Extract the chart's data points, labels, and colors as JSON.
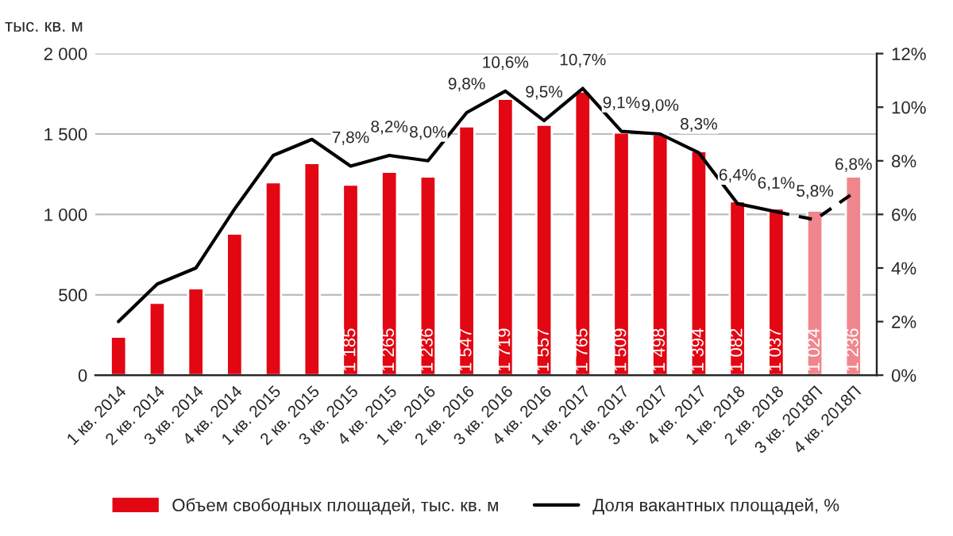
{
  "chart_data": {
    "type": "bar",
    "ylabel": "тыс. кв. м",
    "categories": [
      "1 кв. 2014",
      "2 кв. 2014",
      "3 кв. 2014",
      "4 кв. 2014",
      "1 кв. 2015",
      "2 кв. 2015",
      "3 кв. 2015",
      "4 кв. 2015",
      "1 кв. 2016",
      "2 кв. 2016",
      "3 кв. 2016",
      "4 кв. 2016",
      "1 кв. 2017",
      "2 кв. 2017",
      "3 кв. 2017",
      "4 кв. 2017",
      "1 кв. 2018",
      "2 кв. 2018",
      "3 кв. 2018П",
      "4 кв. 2018П"
    ],
    "series": [
      {
        "name": "Объем свободных площадей, тыс. кв. м",
        "color": "#e30613",
        "colors": [
          "#e30613",
          "#e30613",
          "#e30613",
          "#e30613",
          "#e30613",
          "#e30613",
          "#e30613",
          "#e30613",
          "#e30613",
          "#e30613",
          "#e30613",
          "#e30613",
          "#e30613",
          "#e30613",
          "#e30613",
          "#e30613",
          "#e30613",
          "#e30613",
          "#f0868d",
          "#f0868d"
        ],
        "values": [
          240,
          450,
          540,
          880,
          1200,
          1320,
          1185,
          1265,
          1236,
          1547,
          1719,
          1557,
          1765,
          1509,
          1498,
          1394,
          1082,
          1037,
          1024,
          1236
        ],
        "value_labels": [
          null,
          null,
          null,
          null,
          null,
          null,
          "1 185",
          "1 265",
          "1 236",
          "1 547",
          "1 719",
          "1 557",
          "1 765",
          "1 509",
          "1 498",
          "1 394",
          "1 082",
          "1 037",
          "1 024",
          "1 236"
        ]
      },
      {
        "name": "Доля вакантных площадей, %",
        "type": "line",
        "axis": "y2",
        "color": "#000000",
        "line_style": "solid",
        "values": [
          2.0,
          3.4,
          4.0,
          6.2,
          8.2,
          8.8,
          7.8,
          8.2,
          8.0,
          9.8,
          10.6,
          9.5,
          10.7,
          9.1,
          9.0,
          8.3,
          6.4,
          6.1,
          null,
          null
        ],
        "value_labels": [
          null,
          null,
          null,
          null,
          null,
          null,
          "7,8%",
          "8,2%",
          "8,0%",
          "9,8%",
          "10,6%",
          "9,5%",
          "10,7%",
          "9,1%",
          "9,0%",
          "8,3%",
          "6,4%",
          "6,1%",
          null,
          null
        ]
      },
      {
        "type": "line",
        "axis": "y2",
        "color": "#000000",
        "line_style": "dashed",
        "values": [
          null,
          null,
          null,
          null,
          null,
          null,
          null,
          null,
          null,
          null,
          null,
          null,
          null,
          null,
          null,
          null,
          null,
          6.1,
          5.8,
          6.8
        ],
        "value_labels": [
          null,
          null,
          null,
          null,
          null,
          null,
          null,
          null,
          null,
          null,
          null,
          null,
          null,
          null,
          null,
          null,
          null,
          null,
          "5,8%",
          "6,8%"
        ]
      }
    ],
    "ylim": [
      0,
      2000
    ],
    "yticks": [
      {
        "value": 0,
        "label": "0"
      },
      {
        "value": 500,
        "label": "500"
      },
      {
        "value": 1000,
        "label": "1 000"
      },
      {
        "value": 1500,
        "label": "1 500"
      },
      {
        "value": 2000,
        "label": "2 000"
      }
    ],
    "y2lim": [
      0,
      12
    ],
    "y2ticks": [
      {
        "value": 0,
        "label": "0%"
      },
      {
        "value": 2,
        "label": "2%"
      },
      {
        "value": 4,
        "label": "4%"
      },
      {
        "value": 6,
        "label": "6%"
      },
      {
        "value": 8,
        "label": "8%"
      },
      {
        "value": 10,
        "label": "10%"
      },
      {
        "value": 12,
        "label": "12%"
      }
    ],
    "grid": "y",
    "legend": "bottom"
  }
}
